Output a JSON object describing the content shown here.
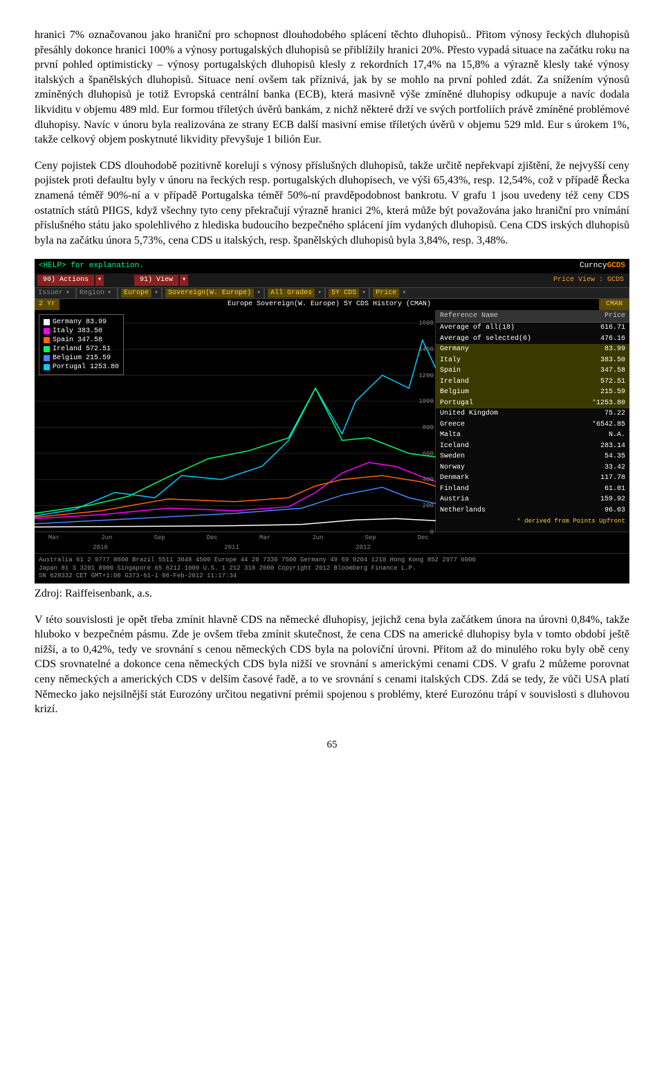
{
  "para1": "hranici 7% označovanou jako hraniční pro schopnost dlouhodobého splácení těchto dluhopisů.. Přitom výnosy řeckých dluhopisů přesáhly dokonce hranici 100% a výnosy portugalských dluhopisů se přiblížily hranici 20%. Přesto vypadá situace na začátku roku na první pohled optimisticky – výnosy portugalských dluhopisů klesly z rekordních 17,4% na 15,8% a výrazně klesly také výnosy italských a španělských dluhopisů. Situace není ovšem tak příznivá, jak by se mohlo na první pohled zdát. Za snížením výnosů zmíněných dluhopisů je totiž Evropská centrální banka (ECB), která masivně výše zmíněné dluhopisy odkupuje a navíc dodala likviditu v objemu 489 mld. Eur formou tříletých úvěrů bankám, z nichž některé drží ve svých portfoliích právě zmíněné problémové dluhopisy. Navíc v únoru byla realizována ze strany ECB další masivní emise tříletých úvěrů v objemu 529 mld. Eur s úrokem 1%, takže celkový objem poskytnuté likvidity převyšuje 1 bilión Eur.",
  "para2": "Ceny pojistek CDS dlouhodobě pozitivně korelují s výnosy příslušných dluhopisů, takže určitě nepřekvapí zjištění, že nejvyšší ceny pojistek proti defaultu  byly v únoru na řeckých resp. portugalských dluhopisech, ve výši 65,43%, resp. 12,54%, což v případě Řecka znamená téměř 90%-ní a v případě Portugalska téměř 50%-ní pravděpodobnost bankrotu. V grafu 1 jsou uvedeny též ceny CDS ostatních států PIIGS, když všechny tyto ceny překračují výrazně hranici 2%, která může být považována jako hraniční pro vnímání příslušného státu jako spolehlivého z hlediska budoucího bezpečného splácení jím vydaných dluhopisů. Cena CDS irských dluhopisů byla na začátku února 5,73%, cena CDS u italských, resp. španělských dluhopisů byla 3,84%, resp. 3,48%.",
  "source": "Zdroj: Raiffeisenbank, a.s.",
  "para3": "V této souvislosti je opět třeba zmínit hlavně CDS na německé dluhopisy, jejichž cena byla začátkem února na úrovni 0,84%, takže hluboko v bezpečném pásmu. Zde je ovšem třeba zmínit skutečnost, že cena CDS na americké dluhopisy byla v tomto období ještě nižší, a to 0,42%, tedy ve srovnání s cenou německých CDS byla na poloviční úrovni. Přitom až do minulého roku byly obě ceny CDS srovnatelné a dokonce cena německých CDS byla nižší ve srovnání s americkými cenami CDS. V grafu 2 můžeme porovnat ceny německých a amerických CDS v delším časové řadě, a to ve srovnání s cenami italských CDS. Zdá se tedy, že vůči USA platí Německo jako nejsilnější stát Eurozóny určitou negativní prémii spojenou s problémy, které Eurozónu trápí v souvislosti s dluhovou krizí.",
  "pageNum": "65",
  "terminal": {
    "help": "<HELP> for explanation.",
    "curncy": "Curncy",
    "gcds": "GCDS",
    "actions": "90) Actions",
    "view": "91) View",
    "priceView": "Price View : GCDS",
    "filters": {
      "issuer": "Issuer",
      "region": "Region",
      "europe": "Europe",
      "sov": "Sovereign(W. Europe)",
      "grades": "All Grades",
      "term": "5Y CDS",
      "price": "Price",
      "yr2": "2 Yr",
      "cman": "CMAN"
    },
    "chartTitle": "Europe Sovereign(W. Europe) 5Y CDS History (CMAN)",
    "legend": [
      {
        "label": "Germany",
        "value": "83.99",
        "color": "#ffffff"
      },
      {
        "label": "Italy",
        "value": "383.50",
        "color": "#ff00ff"
      },
      {
        "label": "Spain",
        "value": "347.58",
        "color": "#ff6600"
      },
      {
        "label": "Ireland",
        "value": "572.51",
        "color": "#00ff66"
      },
      {
        "label": "Belgium",
        "value": "215.59",
        "color": "#4488ff"
      },
      {
        "label": "Portugal",
        "value": "1253.80",
        "color": "#00ccff"
      }
    ],
    "yTicks": [
      "1600",
      "1400",
      "1200",
      "1000",
      "800",
      "600",
      "400",
      "200",
      "0"
    ],
    "yRange": [
      0,
      1700
    ],
    "xLabels": [
      "Mar",
      "Jun",
      "Sep",
      "Dec",
      "Mar",
      "Jun",
      "Sep",
      "Dec"
    ],
    "xYears": [
      "2010",
      "2011",
      "2012"
    ],
    "series": {
      "portugal": {
        "color": "#00ccff",
        "points": [
          [
            0,
            120
          ],
          [
            60,
            170
          ],
          [
            120,
            300
          ],
          [
            180,
            260
          ],
          [
            220,
            430
          ],
          [
            280,
            400
          ],
          [
            340,
            500
          ],
          [
            380,
            700
          ],
          [
            420,
            1100
          ],
          [
            460,
            750
          ],
          [
            480,
            1000
          ],
          [
            520,
            1200
          ],
          [
            560,
            1100
          ],
          [
            580,
            1470
          ],
          [
            600,
            1253
          ]
        ]
      },
      "ireland": {
        "color": "#00ff66",
        "points": [
          [
            0,
            140
          ],
          [
            80,
            200
          ],
          [
            140,
            270
          ],
          [
            200,
            420
          ],
          [
            260,
            560
          ],
          [
            320,
            620
          ],
          [
            380,
            720
          ],
          [
            420,
            1100
          ],
          [
            460,
            700
          ],
          [
            500,
            720
          ],
          [
            560,
            600
          ],
          [
            600,
            572
          ]
        ]
      },
      "italy": {
        "color": "#ff00ff",
        "points": [
          [
            0,
            100
          ],
          [
            100,
            130
          ],
          [
            200,
            180
          ],
          [
            300,
            160
          ],
          [
            380,
            190
          ],
          [
            420,
            300
          ],
          [
            460,
            450
          ],
          [
            500,
            530
          ],
          [
            540,
            500
          ],
          [
            580,
            420
          ],
          [
            600,
            383
          ]
        ]
      },
      "spain": {
        "color": "#ff6600",
        "points": [
          [
            0,
            110
          ],
          [
            100,
            160
          ],
          [
            200,
            250
          ],
          [
            300,
            230
          ],
          [
            380,
            260
          ],
          [
            420,
            350
          ],
          [
            460,
            400
          ],
          [
            520,
            430
          ],
          [
            580,
            380
          ],
          [
            600,
            347
          ]
        ]
      },
      "belgium": {
        "color": "#4488ff",
        "points": [
          [
            0,
            60
          ],
          [
            150,
            100
          ],
          [
            300,
            140
          ],
          [
            400,
            180
          ],
          [
            460,
            280
          ],
          [
            520,
            340
          ],
          [
            560,
            260
          ],
          [
            600,
            215
          ]
        ]
      },
      "germany": {
        "color": "#ffffff",
        "points": [
          [
            0,
            35
          ],
          [
            150,
            40
          ],
          [
            300,
            45
          ],
          [
            400,
            55
          ],
          [
            480,
            90
          ],
          [
            540,
            100
          ],
          [
            600,
            84
          ]
        ]
      }
    },
    "table": {
      "header": {
        "ref": "Reference Name",
        "price": "Price"
      },
      "rows": [
        {
          "name": "Average of all(18)",
          "price": "616.71",
          "hl": false,
          "star": false
        },
        {
          "name": "Average of selected(6)",
          "price": "476.16",
          "hl": false,
          "star": false
        },
        {
          "name": "Germany",
          "price": "83.99",
          "hl": true,
          "star": false
        },
        {
          "name": "Italy",
          "price": "383.50",
          "hl": true,
          "star": false
        },
        {
          "name": "Spain",
          "price": "347.58",
          "hl": true,
          "star": false
        },
        {
          "name": "Ireland",
          "price": "572.51",
          "hl": true,
          "star": false
        },
        {
          "name": "Belgium",
          "price": "215.59",
          "hl": true,
          "star": false
        },
        {
          "name": "Portugal",
          "price": "1253.80",
          "hl": true,
          "star": true
        },
        {
          "name": "United Kingdom",
          "price": "75.22",
          "hl": false,
          "star": false
        },
        {
          "name": "Greece",
          "price": "6542.85",
          "hl": false,
          "star": true
        },
        {
          "name": "Malta",
          "price": "N.A.",
          "hl": false,
          "star": false
        },
        {
          "name": "Iceland",
          "price": "283.14",
          "hl": false,
          "star": false
        },
        {
          "name": "Sweden",
          "price": "54.35",
          "hl": false,
          "star": false
        },
        {
          "name": "Norway",
          "price": "33.42",
          "hl": false,
          "star": false
        },
        {
          "name": "Denmark",
          "price": "117.78",
          "hl": false,
          "star": false
        },
        {
          "name": "Finland",
          "price": "61.01",
          "hl": false,
          "star": false
        },
        {
          "name": "Austria",
          "price": "159.92",
          "hl": false,
          "star": false
        },
        {
          "name": "Netherlands",
          "price": "96.03",
          "hl": false,
          "star": false
        }
      ],
      "deriv": "* derived from Points Upfront"
    },
    "footer": [
      "Australia 61 2 9777 8600 Brazil 5511 3048 4500 Europe 44 20 7330 7500 Germany 49 69 9204 1210 Hong Kong 852 2977 6000",
      "Japan 81 3 3201 8900        Singapore 65 6212 1000        U.S. 1 212 318 2000        Copyright 2012 Bloomberg Finance L.P.",
      "SN 628332 CET   GMT+1:00 G373-61-1 06-Feb-2012 11:17:34"
    ]
  }
}
